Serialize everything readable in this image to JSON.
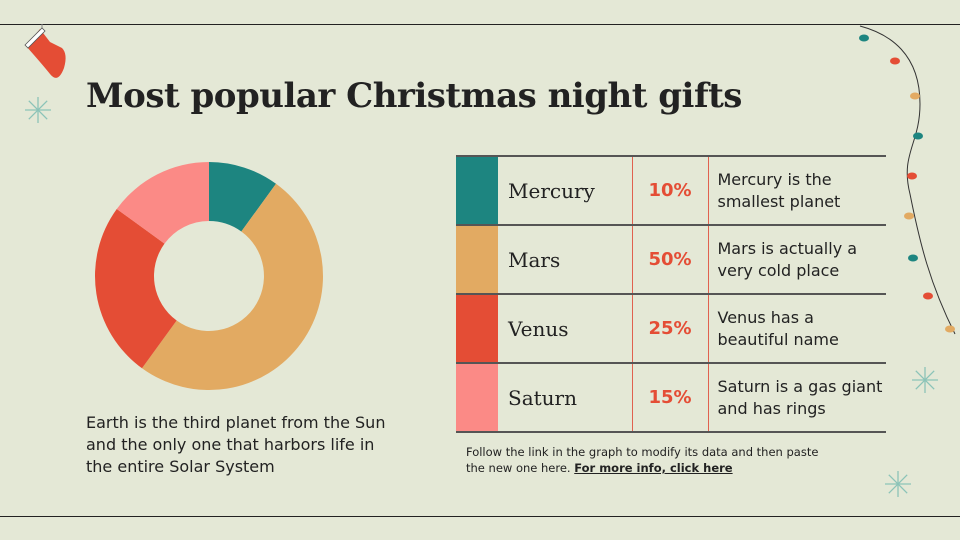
{
  "title": "Most popular Christmas night gifts",
  "description": "Earth is the third planet from the Sun and the only one that harbors life in the entire Solar System",
  "rows": [
    {
      "name": "Mercury",
      "percent": "10%",
      "text": "Mercury is the smallest planet",
      "color": "#1d8580"
    },
    {
      "name": "Mars",
      "percent": "50%",
      "text": "Mars is actually a very cold place",
      "color": "#e2aa62"
    },
    {
      "name": "Venus",
      "percent": "25%",
      "text": "Venus has a beautiful name",
      "color": "#e44d35"
    },
    {
      "name": "Saturn",
      "percent": "15%",
      "text": "Saturn is a gas giant and has rings",
      "color": "#fb8a86"
    }
  ],
  "note": {
    "text": "Follow the link in the graph to modify its data and then paste the new one here.",
    "link": "For more info, click here"
  },
  "chart_data": {
    "type": "pie",
    "donut": true,
    "categories": [
      "Mercury",
      "Mars",
      "Venus",
      "Saturn"
    ],
    "values": [
      10,
      50,
      25,
      15
    ],
    "colors": [
      "#1d8580",
      "#e2aa62",
      "#e44d35",
      "#fb8a86"
    ]
  },
  "decorations": [
    "stocking-icon",
    "snowflake-icon",
    "christmas-lights-icon"
  ]
}
